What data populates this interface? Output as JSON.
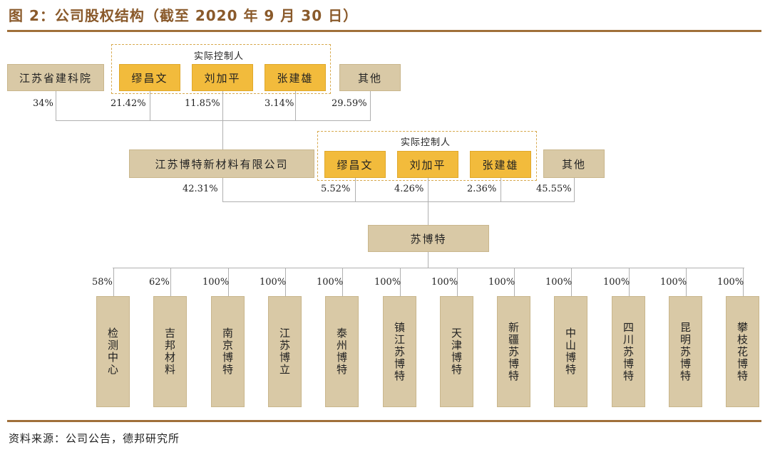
{
  "title": "图 2：公司股权结构（截至 2020 年 9 月 30 日）",
  "top_level": {
    "controller_group_label": "实际控制人",
    "shareholders": [
      {
        "name": "江苏省建科院",
        "pct": "34%"
      },
      {
        "name": "缪昌文",
        "pct": "21.42%"
      },
      {
        "name": "刘加平",
        "pct": "11.85%"
      },
      {
        "name": "张建雄",
        "pct": "3.14%"
      },
      {
        "name": "其他",
        "pct": "29.59%"
      }
    ]
  },
  "mid_level": {
    "controller_group_label": "实际控制人",
    "shareholders": [
      {
        "name": "江苏博特新材料有限公司",
        "pct": "42.31%"
      },
      {
        "name": "缪昌文",
        "pct": "5.52%"
      },
      {
        "name": "刘加平",
        "pct": "4.26%"
      },
      {
        "name": "张建雄",
        "pct": "2.36%"
      },
      {
        "name": "其他",
        "pct": "45.55%"
      }
    ]
  },
  "company": {
    "name": "苏博特"
  },
  "subsidiaries": [
    {
      "name": "检测中心",
      "pct": "58%"
    },
    {
      "name": "吉邦材料",
      "pct": "62%"
    },
    {
      "name": "南京博特",
      "pct": "100%"
    },
    {
      "name": "江苏博立",
      "pct": "100%"
    },
    {
      "name": "泰州博特",
      "pct": "100%"
    },
    {
      "name": "镇江苏博特",
      "pct": "100%"
    },
    {
      "name": "天津博特",
      "pct": "100%"
    },
    {
      "name": "新疆苏博特",
      "pct": "100%"
    },
    {
      "name": "中山博特",
      "pct": "100%"
    },
    {
      "name": "四川苏博特",
      "pct": "100%"
    },
    {
      "name": "昆明苏博特",
      "pct": "100%"
    },
    {
      "name": "攀枝花博特",
      "pct": "100%"
    }
  ],
  "source": "资料来源：公司公告，德邦研究所"
}
